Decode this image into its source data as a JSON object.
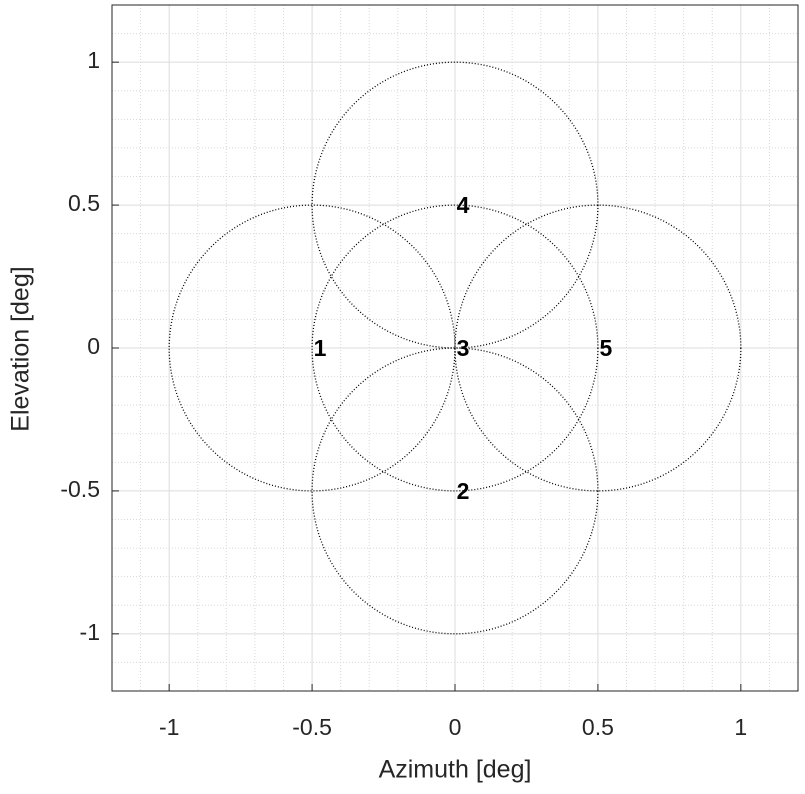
{
  "chart_data": {
    "type": "scatter",
    "xlabel": "Azimuth [deg]",
    "ylabel": "Elevation [deg]",
    "series": [
      {
        "color": "#000000",
        "x": [
          -0.5,
          0,
          0,
          0,
          0.5
        ],
        "y": [
          0,
          -0.5,
          0,
          0.5,
          0
        ],
        "radius": [
          0.5,
          0.5,
          0.5,
          0.5,
          0.5
        ],
        "labels": [
          "1",
          "2",
          "3",
          "4",
          "5"
        ]
      }
    ],
    "xlim": [
      -1.2,
      1.2
    ],
    "ylim": [
      -1.2,
      1.2
    ],
    "xticks": [
      -1,
      -0.5,
      0,
      0.5,
      1
    ],
    "yticks": [
      -1,
      -0.5,
      0,
      0.5,
      1
    ],
    "grid": true,
    "minor_grid": true,
    "xminorticks": [
      -1.1,
      -0.9,
      -0.8,
      -0.7,
      -0.6,
      -0.4,
      -0.3,
      -0.2,
      -0.1,
      0.1,
      0.2,
      0.3,
      0.4,
      0.6,
      0.7,
      0.8,
      0.9,
      1.1
    ],
    "yminorticks": [
      -1.1,
      -0.9,
      -0.8,
      -0.7,
      -0.6,
      -0.4,
      -0.3,
      -0.2,
      -0.1,
      0.1,
      0.2,
      0.3,
      0.4,
      0.6,
      0.7,
      0.8,
      0.9,
      1.1
    ]
  }
}
